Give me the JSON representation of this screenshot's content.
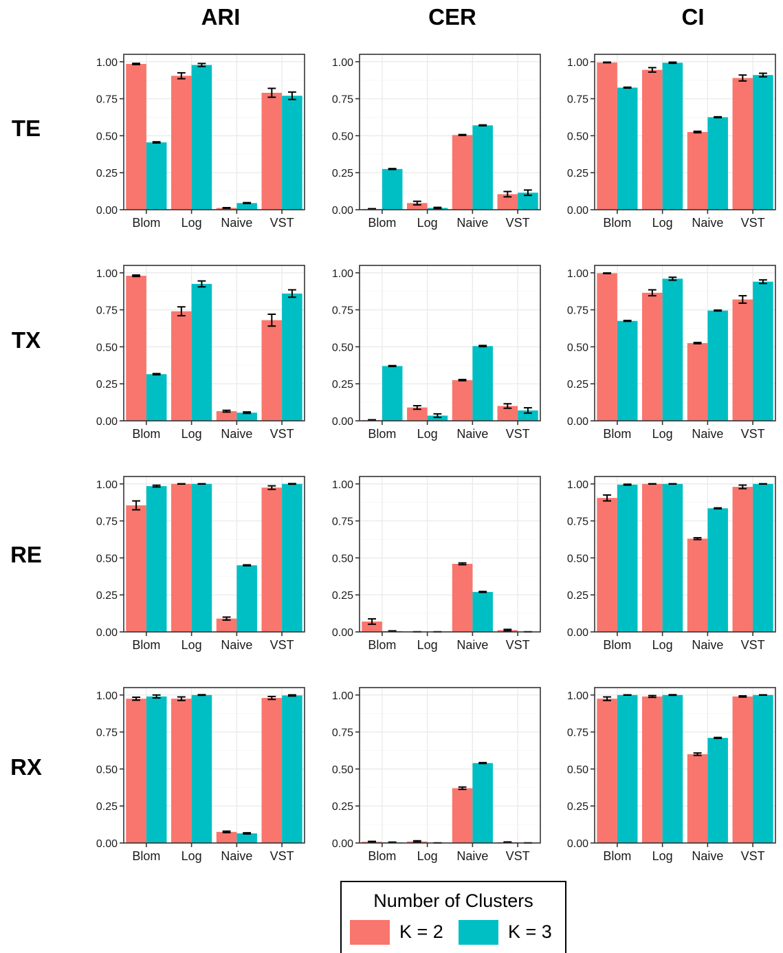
{
  "chart_data": {
    "type": "bar",
    "columns": [
      "ARI",
      "CER",
      "CI"
    ],
    "rows": [
      "TE",
      "TX",
      "RE",
      "RX"
    ],
    "categories": [
      "Blom",
      "Log",
      "Naive",
      "VST"
    ],
    "y_ticks": [
      "0.00",
      "0.25",
      "0.50",
      "0.75",
      "1.00"
    ],
    "ylim": [
      0,
      1.05
    ],
    "grid": true,
    "legend": {
      "title": "Number of Clusters",
      "placement": "bottom-center",
      "entries": [
        "K = 2",
        "K = 3"
      ]
    },
    "colors": {
      "K = 2": "#F8766D",
      "K = 3": "#00BFC4"
    },
    "panels": [
      {
        "row": "TE",
        "column": "ARI",
        "series": [
          {
            "name": "K = 2",
            "values": [
              0.985,
              0.905,
              0.012,
              0.79
            ],
            "errors": [
              0.004,
              0.02,
              0.002,
              0.03
            ]
          },
          {
            "name": "K = 3",
            "values": [
              0.455,
              0.978,
              0.045,
              0.77
            ],
            "errors": [
              0.004,
              0.01,
              0.003,
              0.025
            ]
          }
        ]
      },
      {
        "row": "TE",
        "column": "CER",
        "series": [
          {
            "name": "K = 2",
            "values": [
              0.005,
              0.045,
              0.505,
              0.105
            ],
            "errors": [
              0.002,
              0.012,
              0.003,
              0.018
            ]
          },
          {
            "name": "K = 3",
            "values": [
              0.275,
              0.012,
              0.57,
              0.115
            ],
            "errors": [
              0.003,
              0.004,
              0.003,
              0.018
            ]
          }
        ]
      },
      {
        "row": "TE",
        "column": "CI",
        "series": [
          {
            "name": "K = 2",
            "values": [
              0.995,
              0.945,
              0.525,
              0.89
            ],
            "errors": [
              0.002,
              0.015,
              0.005,
              0.02
            ]
          },
          {
            "name": "K = 3",
            "values": [
              0.825,
              0.993,
              0.625,
              0.91
            ],
            "errors": [
              0.003,
              0.004,
              0.003,
              0.012
            ]
          }
        ]
      },
      {
        "row": "TX",
        "column": "ARI",
        "series": [
          {
            "name": "K = 2",
            "values": [
              0.98,
              0.74,
              0.065,
              0.68
            ],
            "errors": [
              0.005,
              0.03,
              0.006,
              0.04
            ]
          },
          {
            "name": "K = 3",
            "values": [
              0.315,
              0.925,
              0.055,
              0.86
            ],
            "errors": [
              0.004,
              0.02,
              0.005,
              0.025
            ]
          }
        ]
      },
      {
        "row": "TX",
        "column": "CER",
        "series": [
          {
            "name": "K = 2",
            "values": [
              0.005,
              0.09,
              0.275,
              0.1
            ],
            "errors": [
              0.002,
              0.012,
              0.004,
              0.015
            ]
          },
          {
            "name": "K = 3",
            "values": [
              0.37,
              0.035,
              0.505,
              0.07
            ],
            "errors": [
              0.003,
              0.012,
              0.004,
              0.018
            ]
          }
        ]
      },
      {
        "row": "TX",
        "column": "CI",
        "series": [
          {
            "name": "K = 2",
            "values": [
              0.997,
              0.865,
              0.525,
              0.82
            ],
            "errors": [
              0.002,
              0.02,
              0.004,
              0.025
            ]
          },
          {
            "name": "K = 3",
            "values": [
              0.675,
              0.96,
              0.745,
              0.94
            ],
            "errors": [
              0.003,
              0.01,
              0.003,
              0.012
            ]
          }
        ]
      },
      {
        "row": "RE",
        "column": "ARI",
        "series": [
          {
            "name": "K = 2",
            "values": [
              0.855,
              1.0,
              0.09,
              0.975
            ],
            "errors": [
              0.03,
              0.001,
              0.01,
              0.012
            ]
          },
          {
            "name": "K = 3",
            "values": [
              0.985,
              1.0,
              0.45,
              1.0
            ],
            "errors": [
              0.006,
              0.001,
              0.003,
              0.002
            ]
          }
        ]
      },
      {
        "row": "RE",
        "column": "CER",
        "series": [
          {
            "name": "K = 2",
            "values": [
              0.07,
              0.0,
              0.46,
              0.012
            ],
            "errors": [
              0.018,
              0.001,
              0.006,
              0.005
            ]
          },
          {
            "name": "K = 3",
            "values": [
              0.005,
              0.0,
              0.27,
              0.0
            ],
            "errors": [
              0.002,
              0.001,
              0.003,
              0.001
            ]
          }
        ]
      },
      {
        "row": "RE",
        "column": "CI",
        "series": [
          {
            "name": "K = 2",
            "values": [
              0.905,
              1.0,
              0.63,
              0.98
            ],
            "errors": [
              0.02,
              0.001,
              0.006,
              0.012
            ]
          },
          {
            "name": "K = 3",
            "values": [
              0.995,
              1.0,
              0.835,
              1.0
            ],
            "errors": [
              0.003,
              0.001,
              0.003,
              0.001
            ]
          }
        ]
      },
      {
        "row": "RX",
        "column": "ARI",
        "series": [
          {
            "name": "K = 2",
            "values": [
              0.975,
              0.975,
              0.075,
              0.98
            ],
            "errors": [
              0.01,
              0.012,
              0.005,
              0.01
            ]
          },
          {
            "name": "K = 3",
            "values": [
              0.99,
              1.0,
              0.065,
              0.997
            ],
            "errors": [
              0.01,
              0.002,
              0.004,
              0.004
            ]
          }
        ]
      },
      {
        "row": "RX",
        "column": "CER",
        "series": [
          {
            "name": "K = 2",
            "values": [
              0.008,
              0.01,
              0.37,
              0.005
            ],
            "errors": [
              0.003,
              0.005,
              0.008,
              0.002
            ]
          },
          {
            "name": "K = 3",
            "values": [
              0.004,
              0.0,
              0.54,
              0.0
            ],
            "errors": [
              0.002,
              0.001,
              0.003,
              0.001
            ]
          }
        ]
      },
      {
        "row": "RX",
        "column": "CI",
        "series": [
          {
            "name": "K = 2",
            "values": [
              0.975,
              0.99,
              0.6,
              0.99
            ],
            "errors": [
              0.012,
              0.006,
              0.008,
              0.004
            ]
          },
          {
            "name": "K = 3",
            "values": [
              1.0,
              1.0,
              0.71,
              1.0
            ],
            "errors": [
              0.001,
              0.002,
              0.003,
              0.001
            ]
          }
        ]
      }
    ]
  }
}
